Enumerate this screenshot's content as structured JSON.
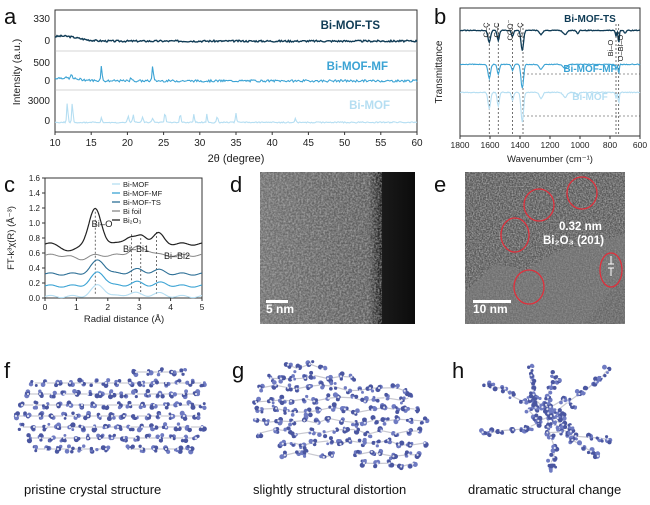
{
  "figure": {
    "panel_labels": [
      "a",
      "b",
      "c",
      "d",
      "e",
      "f",
      "g",
      "h"
    ],
    "colors": {
      "ts": "#0f3b55",
      "mf": "#3ba3d4",
      "mof": "#b5def2",
      "foil": "#888888",
      "oxide": "#222222",
      "ring": "#e0303c"
    }
  },
  "chart_data": [
    {
      "panel": "a",
      "type": "line",
      "xlabel": "2θ (degree)",
      "ylabel": "Intensity (a.u.)",
      "xlim": [
        10,
        60
      ],
      "xticks": [
        "10",
        "15",
        "20",
        "25",
        "30",
        "35",
        "40",
        "45",
        "50",
        "55",
        "60"
      ],
      "series": [
        {
          "name": "Bi-MOF-TS",
          "yticks": [
            "330",
            "0"
          ],
          "peaks": []
        },
        {
          "name": "Bi-MOF-MF",
          "yticks": [
            "500",
            "0"
          ],
          "peaks": [
            16.4,
            23.5,
            12.3,
            20.5
          ]
        },
        {
          "name": "Bi-MOF",
          "yticks": [
            "3000",
            "0"
          ],
          "peaks": [
            11.7,
            12.4,
            16.4,
            20.1,
            20.8,
            22.1,
            23.5,
            25.2,
            27.3,
            29.2,
            31.0,
            32.4,
            35.0,
            43.2
          ]
        }
      ]
    },
    {
      "panel": "b",
      "type": "line",
      "xlabel": "Wavenumber (cm⁻¹)",
      "ylabel": "Transmittance",
      "xlim": [
        1800,
        600
      ],
      "xticks": [
        "1800",
        "1600",
        "1400",
        "1200",
        "1000",
        "800",
        "600"
      ],
      "series_names": [
        "Bi-MOF-TS",
        "Bi-MOF-MF",
        "Bi-MOF"
      ],
      "band_labels": [
        "C–C",
        "C–C",
        "COO⁻",
        "C–C",
        "Bi–O",
        "O–Bi–O"
      ],
      "band_positions": [
        1610,
        1540,
        1450,
        1385,
        760,
        740
      ]
    },
    {
      "panel": "c",
      "type": "line",
      "xlabel": "Radial distance (Å)",
      "ylabel": "FT-k³χ(R) (Å⁻³)",
      "xlim": [
        0,
        5
      ],
      "ylim": [
        0,
        1.6
      ],
      "xticks": [
        "0",
        "1",
        "2",
        "3",
        "4",
        "5"
      ],
      "yticks": [
        "0.0",
        "0.2",
        "0.4",
        "0.6",
        "0.8",
        "1.0",
        "1.2",
        "1.4",
        "1.6"
      ],
      "legend": [
        "Bi-MOF",
        "Bi-MOF-MF",
        "Bi-MOF-TS",
        "Bi foil",
        "Bi₂O₃"
      ],
      "annotations": [
        "Bi–O",
        "Bi–Bi1",
        "Bi–Bi2"
      ]
    }
  ],
  "images": {
    "d": {
      "scale_bar": "5 nm"
    },
    "e": {
      "scale_bar": "10 nm",
      "annotation_line1": "0.32 nm",
      "annotation_line2": "Bi₂O₃ (201)"
    }
  },
  "captions": {
    "f": "pristine crystal structure",
    "g": "slightly structural distortion",
    "h": "dramatic structural change"
  }
}
